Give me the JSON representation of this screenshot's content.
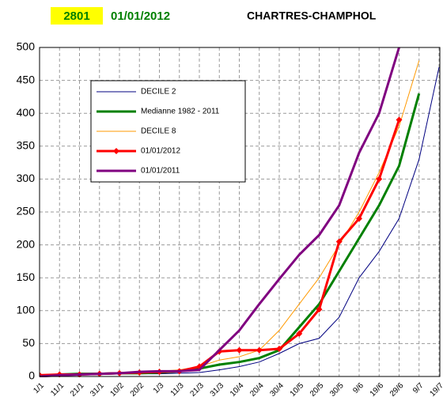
{
  "header": {
    "code": "2801",
    "date": "01/01/2012",
    "station": "CHARTRES-CHAMPHOL"
  },
  "chart_data": {
    "type": "line",
    "categories": [
      "1/1",
      "11/1",
      "21/1",
      "31/1",
      "10/2",
      "20/2",
      "1/3",
      "11/3",
      "21/3",
      "31/3",
      "10/4",
      "20/4",
      "30/4",
      "10/5",
      "20/5",
      "30/5",
      "9/6",
      "19/6",
      "29/6",
      "9/7",
      "19/7"
    ],
    "series": [
      {
        "name": "DECILE 2",
        "color": "#000080",
        "width": 1,
        "values": [
          0,
          2,
          3,
          3,
          4,
          4,
          4,
          5,
          6,
          10,
          15,
          22,
          35,
          50,
          58,
          90,
          150,
          190,
          240,
          330,
          470
        ]
      },
      {
        "name": "Medianne 1982 - 2011",
        "color": "#008000",
        "width": 3,
        "values": [
          0,
          3,
          4,
          4,
          5,
          5,
          6,
          8,
          12,
          18,
          22,
          28,
          40,
          75,
          110,
          160,
          210,
          260,
          320,
          430,
          null
        ]
      },
      {
        "name": "DECILE 8",
        "color": "#ff9900",
        "width": 1,
        "values": [
          0,
          3,
          4,
          5,
          6,
          7,
          8,
          10,
          15,
          25,
          30,
          40,
          70,
          110,
          150,
          200,
          250,
          310,
          380,
          480,
          null
        ]
      },
      {
        "name": "01/01/2012",
        "color": "#ff0000",
        "width": 3,
        "markers": true,
        "values": [
          2,
          3,
          3,
          4,
          5,
          6,
          7,
          8,
          15,
          38,
          40,
          40,
          42,
          65,
          102,
          205,
          240,
          300,
          390,
          null,
          null
        ]
      },
      {
        "name": "01/01/2011",
        "color": "#800080",
        "width": 3,
        "values": [
          0,
          2,
          3,
          4,
          5,
          7,
          8,
          8,
          10,
          40,
          70,
          110,
          148,
          185,
          215,
          260,
          340,
          400,
          500,
          null,
          null
        ]
      }
    ],
    "ylim": [
      0,
      500
    ],
    "yticks": [
      0,
      50,
      100,
      150,
      200,
      250,
      300,
      350,
      400,
      450,
      500
    ],
    "grid": true
  }
}
